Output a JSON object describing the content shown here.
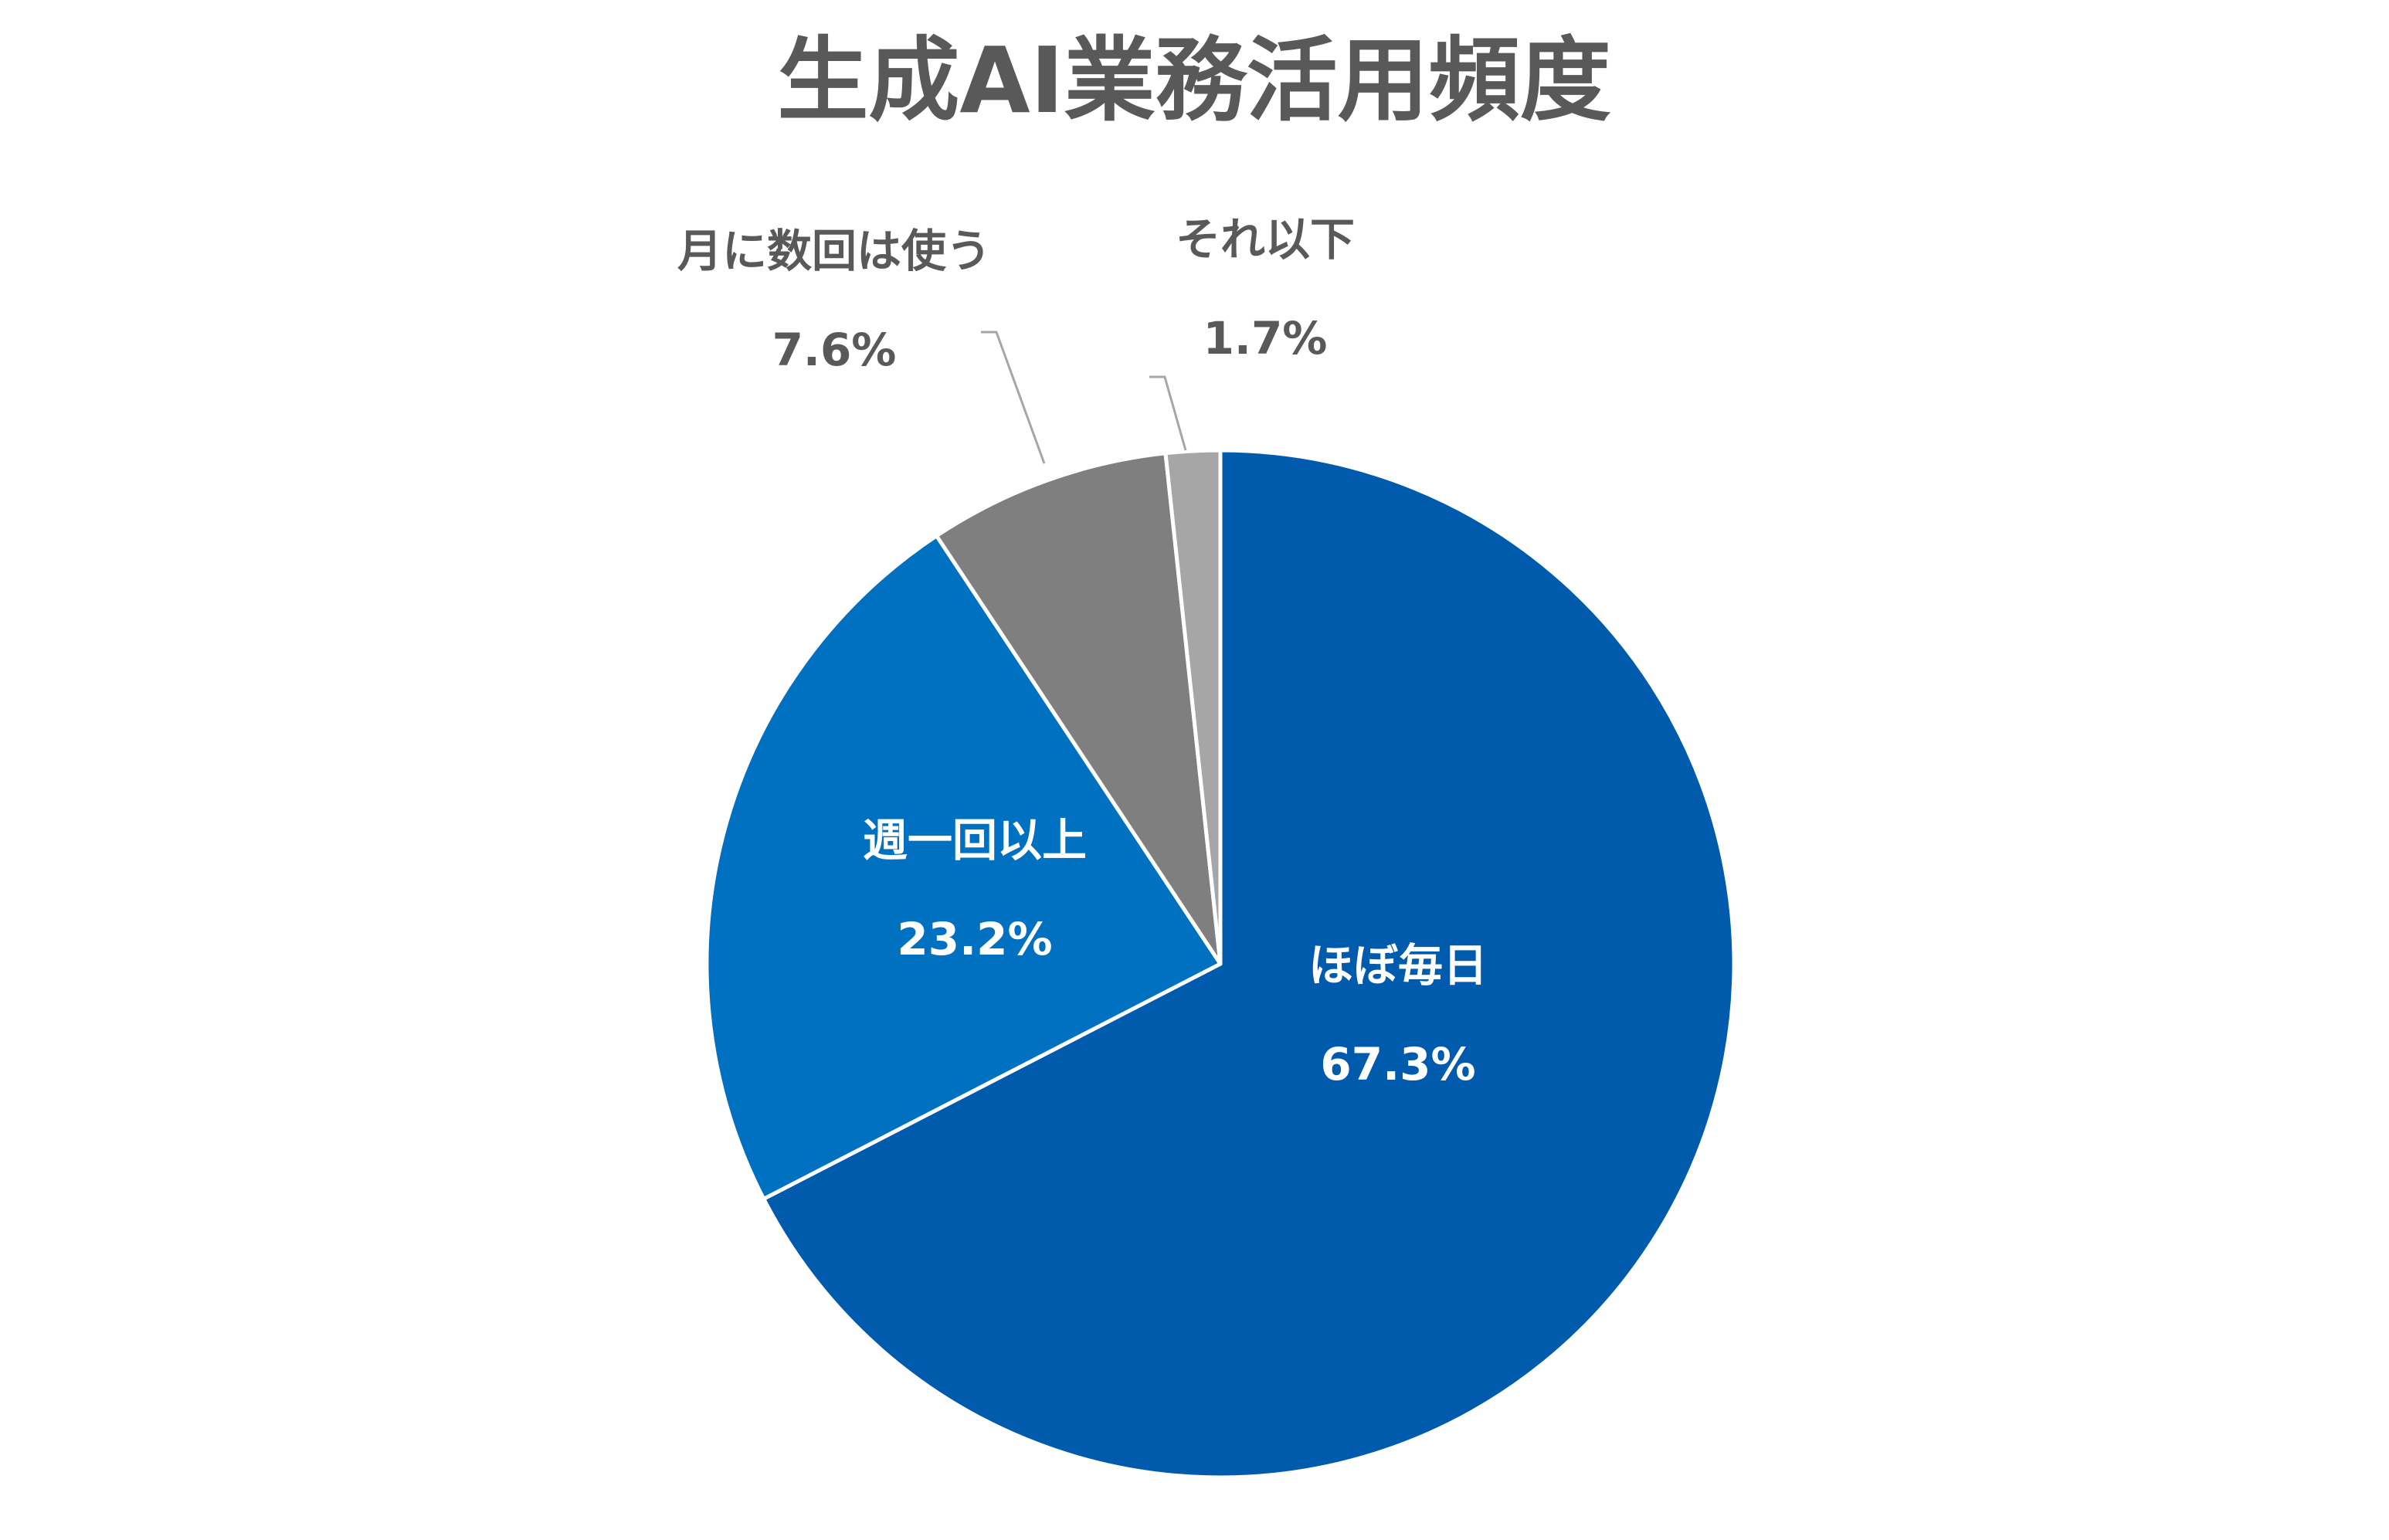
{
  "chart_data": {
    "type": "pie",
    "title": "生成AI業務活用頻度",
    "slices": [
      {
        "label": "ほぼ毎日",
        "value": 67.3,
        "value_label": "67.3%",
        "color": "#005bac",
        "label_position": "inside"
      },
      {
        "label": "週一回以上",
        "value": 23.2,
        "value_label": "23.2%",
        "color": "#0070c0",
        "label_position": "inside"
      },
      {
        "label": "月に数回は使う",
        "value": 7.6,
        "value_label": "7.6%",
        "color": "#7f7f7f",
        "label_position": "outside"
      },
      {
        "label": "それ以下",
        "value": 1.7,
        "value_label": "1.7%",
        "color": "#a6a6a6",
        "label_position": "outside"
      }
    ],
    "start_angle": "12 o'clock",
    "direction": "clockwise",
    "legend": "none"
  }
}
